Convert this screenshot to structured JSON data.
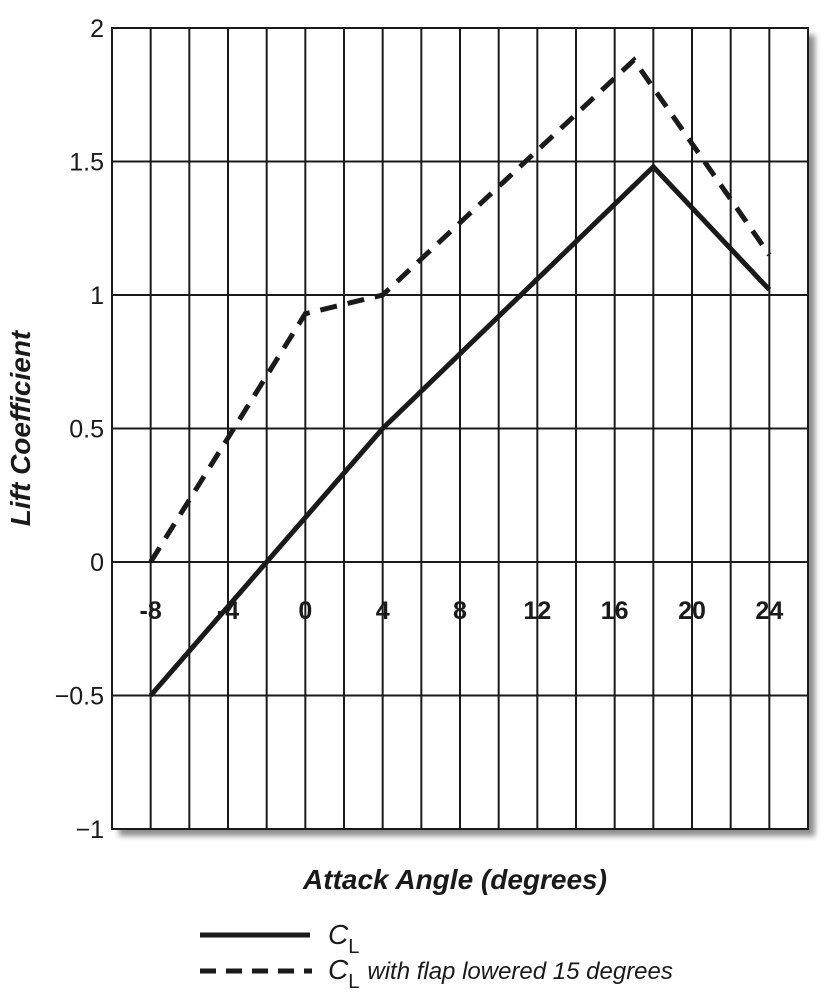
{
  "chart_data": {
    "type": "line",
    "title": "",
    "xlabel": "Attack Angle (degrees)",
    "ylabel": "Lift Coefficient",
    "xlim": [
      -10,
      26
    ],
    "ylim": [
      -1,
      2
    ],
    "x_ticks": [
      "-8",
      "-4",
      "0",
      "4",
      "8",
      "12",
      "16",
      "20",
      "24"
    ],
    "y_ticks": [
      "2",
      "1.5",
      "1",
      "0.5",
      "0",
      "−0.5",
      "−1"
    ],
    "grid": true,
    "legend_position": "bottom-center",
    "series": [
      {
        "name": "C",
        "subscript": "L",
        "line_style": "solid",
        "color": "#1a1a1a",
        "x": [
          -8,
          4,
          18,
          24
        ],
        "y": [
          -0.5,
          0.5,
          1.48,
          1.02
        ]
      },
      {
        "name": "C",
        "subscript": "L",
        "name_suffix": "with flap lowered 15 degrees",
        "line_style": "dashed",
        "color": "#1a1a1a",
        "x": [
          -8,
          0,
          4,
          17,
          24
        ],
        "y": [
          0,
          0.93,
          1.0,
          1.88,
          1.15
        ]
      }
    ]
  }
}
